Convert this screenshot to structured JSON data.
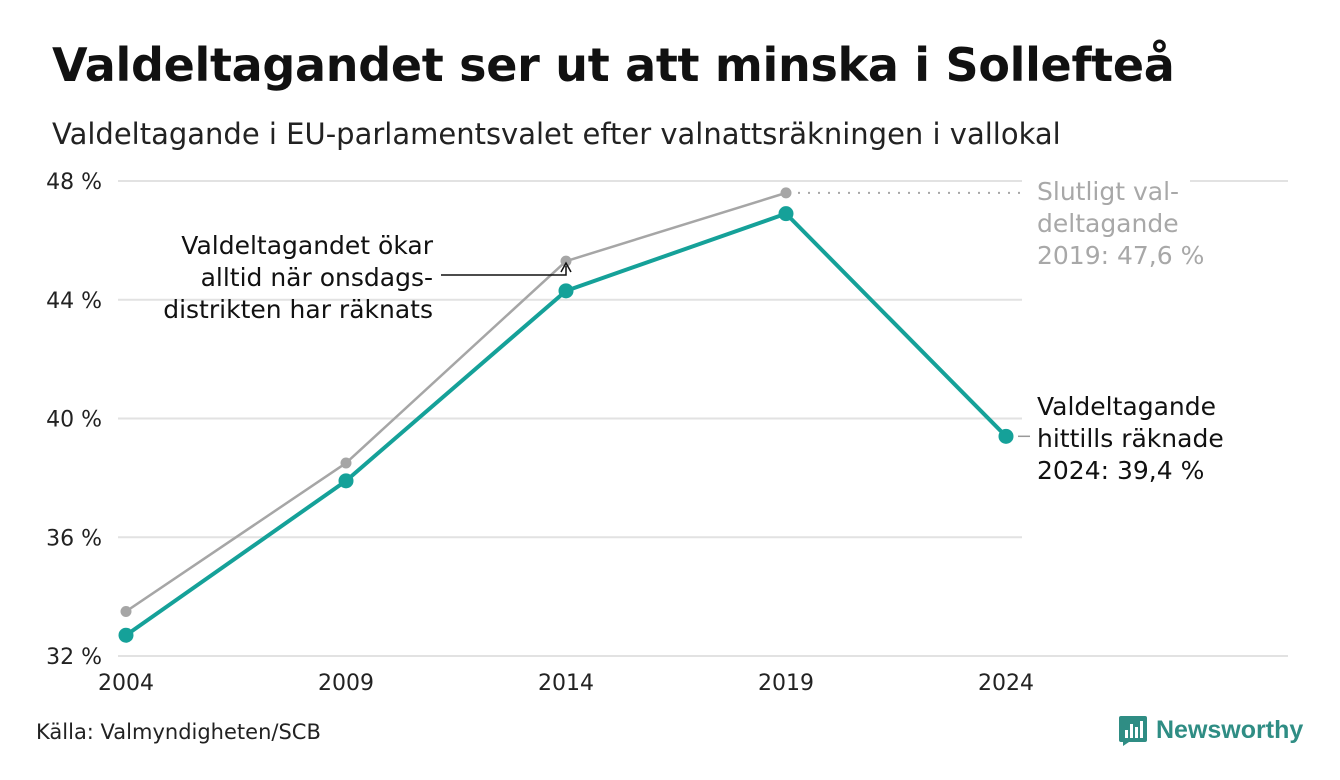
{
  "header": {
    "title": "Valdeltagandet ser ut att minska i Sollefteå",
    "subtitle": "Valdeltagande i EU-parlamentsvalet efter valnattsräkningen i vallokal"
  },
  "footer": {
    "source": "Källa: Valmyndigheten/SCB",
    "brand": "Newsworthy"
  },
  "colors": {
    "primary": "#15a199",
    "secondary": "#a6a6a6",
    "grid": "#e2e2e2",
    "brand": "#2f8d84"
  },
  "chart_data": {
    "type": "line",
    "categories": [
      "2004",
      "2009",
      "2014",
      "2019",
      "2024"
    ],
    "ylim": [
      32,
      48
    ],
    "yticks": [
      32,
      36,
      40,
      44,
      48
    ],
    "ytick_labels": [
      "32 %",
      "36 %",
      "40 %",
      "44 %",
      "48 %"
    ],
    "grid": true,
    "series": [
      {
        "key": "final",
        "color": "#a6a6a6",
        "values": [
          33.5,
          38.5,
          45.3,
          47.6,
          null
        ]
      },
      {
        "key": "election_night",
        "color": "#15a199",
        "values": [
          32.7,
          37.9,
          44.3,
          46.9,
          39.4
        ]
      }
    ],
    "annotations": {
      "final_2019": [
        "Slutligt val-",
        "deltagande",
        "2019: 47,6 %"
      ],
      "current_2024": [
        "Valdeltagande",
        "hittills räknade",
        "2024: 39,4 %"
      ],
      "note": [
        "Valdeltagandet ökar",
        "alltid när onsdags-",
        "distrikten har räknats"
      ]
    }
  }
}
